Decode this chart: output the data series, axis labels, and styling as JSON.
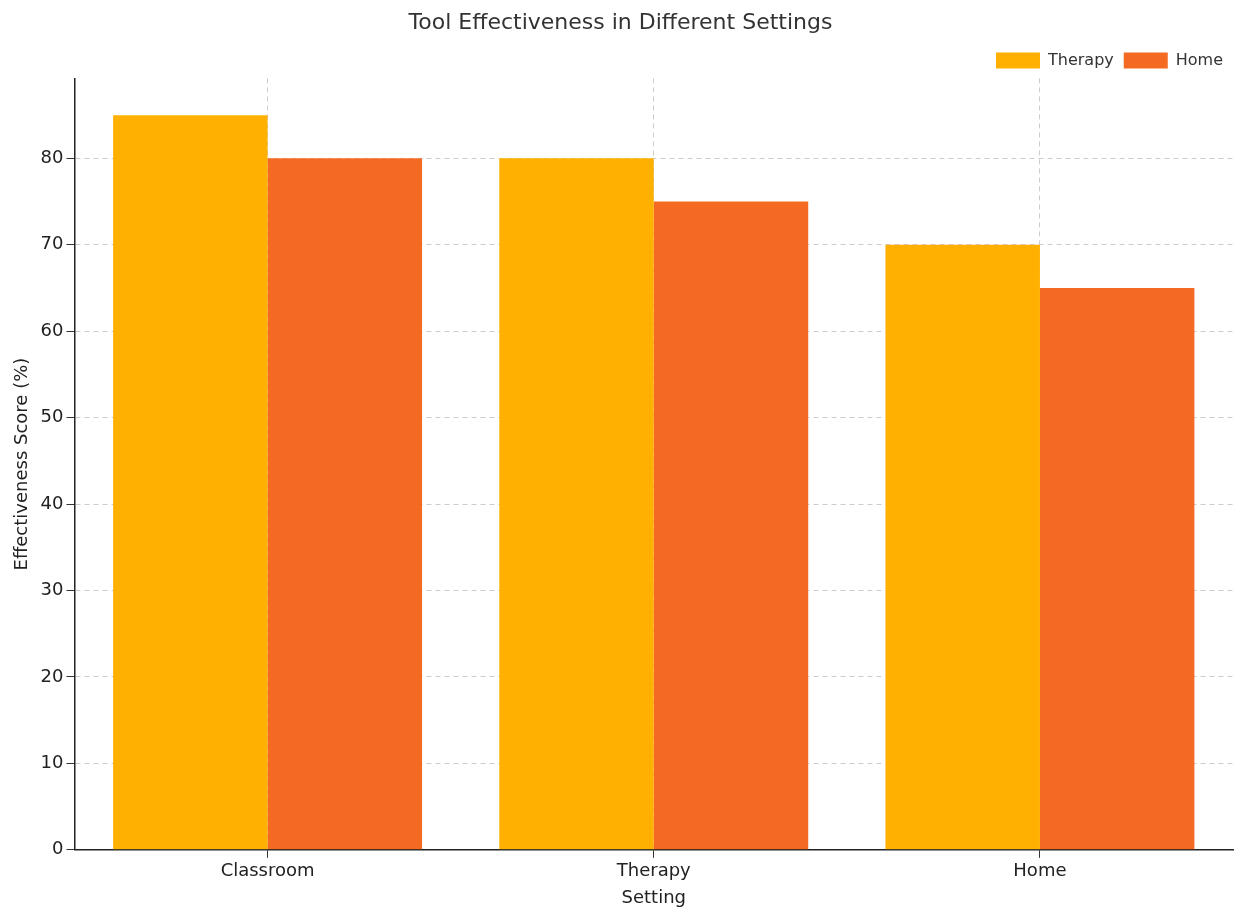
{
  "chart_data": {
    "type": "bar",
    "title": "Tool Effectiveness in Different Settings",
    "xlabel": "Setting",
    "ylabel": "Effectiveness Score (%)",
    "categories": [
      "Classroom",
      "Therapy",
      "Home"
    ],
    "series": [
      {
        "name": "Therapy",
        "color": "#ffb000",
        "values": [
          85,
          80,
          70
        ]
      },
      {
        "name": "Home",
        "color": "#f46a22",
        "values": [
          80,
          75,
          65
        ]
      }
    ],
    "ylim": [
      0,
      89.25
    ],
    "yticks": [
      0,
      10,
      20,
      30,
      40,
      50,
      60,
      70,
      80
    ],
    "grid": true,
    "legend": "top right"
  }
}
